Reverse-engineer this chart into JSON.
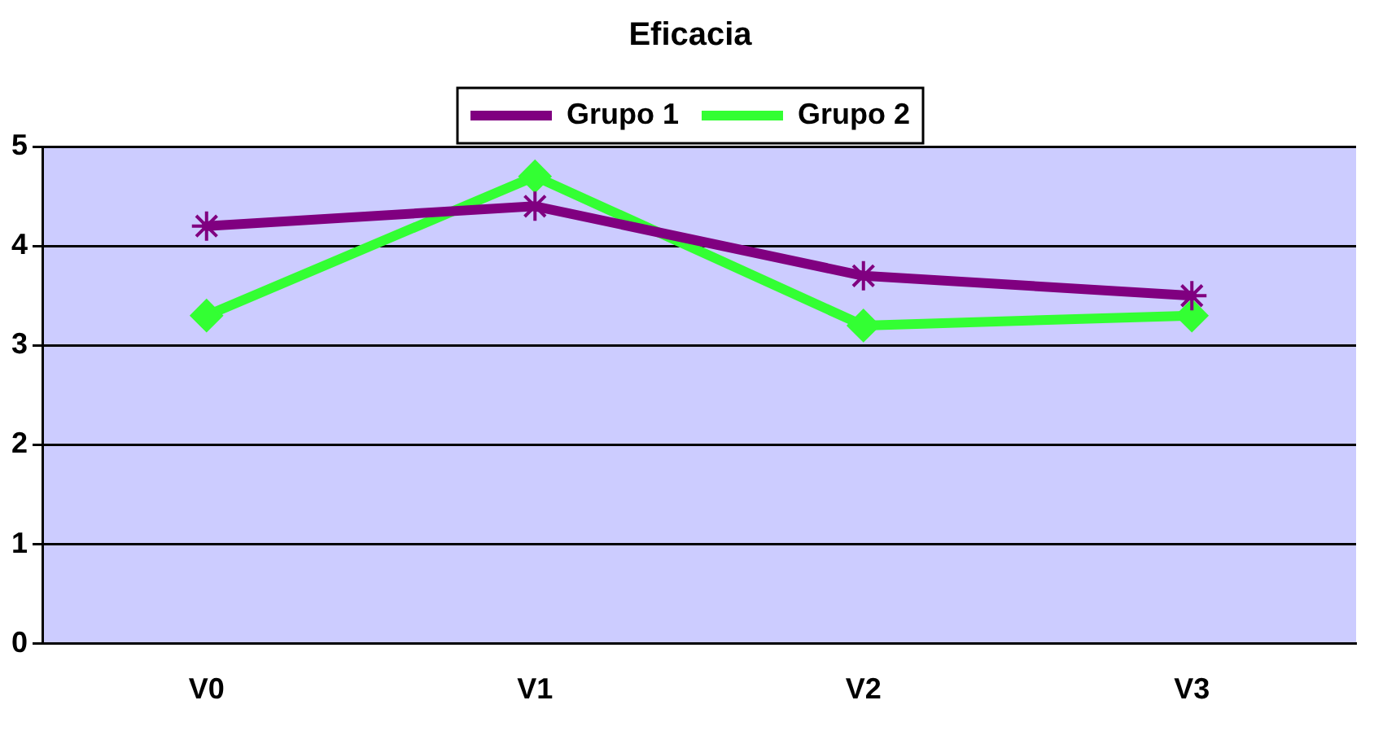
{
  "chart_data": {
    "type": "line",
    "title": "Eficacia",
    "categories": [
      "V0",
      "V1",
      "V2",
      "V3"
    ],
    "series": [
      {
        "name": "Grupo 1",
        "color": "#800080",
        "values": [
          4.2,
          4.4,
          3.7,
          3.5
        ],
        "marker": "cross"
      },
      {
        "name": "Grupo 2",
        "color": "#33ff33",
        "values": [
          3.3,
          4.7,
          3.2,
          3.3
        ],
        "marker": "diamond"
      }
    ],
    "ylim": [
      0,
      5
    ],
    "yticks": [
      0,
      1,
      2,
      3,
      4,
      5
    ],
    "grid": "y",
    "legend": "top"
  }
}
